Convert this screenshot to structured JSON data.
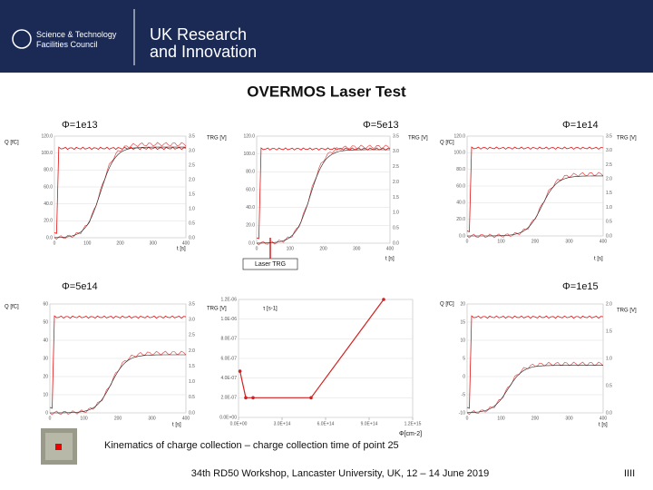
{
  "header": {
    "org1": "Science & Technology Facilities Council",
    "org2_line1": "UK Research",
    "org2_line2": "and Innovation"
  },
  "title": "OVERMOS Laser Test",
  "panels": [
    {
      "label": "Φ=1e13",
      "q_axis": "Q [fC]",
      "trg_axis": "TRG [V]",
      "t_axis": "t [s]",
      "q_ticks": [
        "0.0",
        "20.0",
        "40.0",
        "60.0",
        "80.0",
        "100.0",
        "120.0"
      ],
      "trg_ticks": [
        "0.0",
        "0.5",
        "1.0",
        "1.5",
        "2.0",
        "2.5",
        "3.0",
        "3.5"
      ],
      "t_ticks": [
        "0",
        "100",
        "200",
        "300",
        "400"
      ]
    },
    {
      "label": "Φ=5e13",
      "trg_axis": "TRG [V]",
      "t_axis": "t [s]",
      "q_ticks": [
        "0.0",
        "20.0",
        "40.0",
        "60.0",
        "80.0",
        "100.0",
        "120.0"
      ],
      "trg_ticks": [
        "0.0",
        "0.5",
        "1.0",
        "1.5",
        "2.0",
        "2.5",
        "3.0",
        "3.5"
      ],
      "t_ticks": [
        "0",
        "100",
        "200",
        "300",
        "400"
      ],
      "note": "Laser TRG"
    },
    {
      "label": "Φ=1e14",
      "q_axis": "Q [fC]",
      "trg_axis": "TRG [V]",
      "t_axis": "t [s]",
      "q_ticks": [
        "0.0",
        "20.0",
        "40.0",
        "60.0",
        "80.0",
        "100.0",
        "120.0"
      ],
      "trg_ticks": [
        "0.0",
        "0.5",
        "1.0",
        "1.5",
        "2.0",
        "2.5",
        "3.0",
        "3.5"
      ],
      "t_ticks": [
        "0",
        "100",
        "200",
        "300",
        "400"
      ]
    },
    {
      "label": "Φ=5e14",
      "q_axis": "Q [fC]",
      "trg_axis": "TRG [V]",
      "t_axis": "t [s]",
      "q_ticks": [
        "0",
        "10",
        "20",
        "30",
        "40",
        "50",
        "60"
      ],
      "trg_ticks": [
        "0.0",
        "0.5",
        "1.0",
        "1.5",
        "2.0",
        "2.5",
        "3.0",
        "3.5"
      ],
      "t_ticks": [
        "0",
        "100",
        "200",
        "300",
        "400"
      ]
    },
    {
      "label": "Φ=1e15",
      "q_axis": "Q [fC]",
      "trg_axis": "TRG [V]",
      "t_axis": "t [s]",
      "q_ticks": [
        "-10",
        "-5",
        "0",
        "5",
        "10",
        "15",
        "20"
      ],
      "trg_ticks": [
        "0.0",
        "0.5",
        "1.0",
        "1.5",
        "2.0"
      ],
      "t_ticks": [
        "0",
        "100",
        "200",
        "300",
        "400"
      ]
    }
  ],
  "center_plot": {
    "y_label": "τ [s-1]",
    "x_label": "Φ[cm-2]",
    "x": [
      10000000000000.0,
      50000000000000.0,
      100000000000000.0,
      500000000000000.0,
      1000000000000000.0
    ],
    "values": [
      4.7e-07,
      2e-07,
      2e-07,
      2e-07,
      1.2e-06
    ],
    "xlim": [
      0,
      1200000000000000.0
    ],
    "ylim": [
      0,
      1.2e-06
    ],
    "xticks": [
      {
        "value": 0,
        "label": "0.0E+00"
      },
      {
        "value": 300000000000000.0,
        "label": "3.0E+14"
      },
      {
        "value": 600000000000000.0,
        "label": "6.0E+14"
      },
      {
        "value": 900000000000000.0,
        "label": "9.0E+14"
      },
      {
        "value": 1200000000000000.0,
        "label": "1.2E+15"
      }
    ],
    "yticks": [
      {
        "value": 0,
        "label": "0.0E+00"
      },
      {
        "value": 2e-07,
        "label": "2.0E-07"
      },
      {
        "value": 4e-07,
        "label": "4.0E-07"
      },
      {
        "value": 6e-07,
        "label": "6.0E-07"
      },
      {
        "value": 8e-07,
        "label": "8.0E-07"
      },
      {
        "value": 1e-06,
        "label": "1.0E-06"
      },
      {
        "value": 1.2e-06,
        "label": "1.2E-06"
      }
    ],
    "color": "#d42020"
  },
  "caption": "Kinematics of charge collection – charge collection time of point 25",
  "footer": {
    "text": "34th RD50 Workshop, Lancaster University, UK, 12 – 14 June 2019",
    "page": "IIII"
  }
}
